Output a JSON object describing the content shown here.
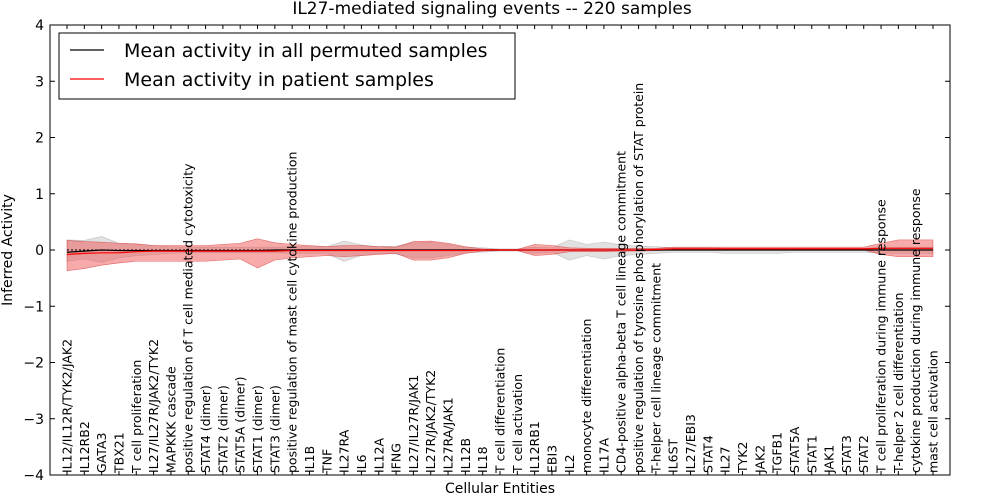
{
  "chart_data": {
    "type": "line",
    "title": "IL27-mediated signaling events -- 220 samples",
    "xlabel": "Cellular Entities",
    "ylabel": "Inferred Activity",
    "ylim": [
      -4,
      4
    ],
    "yticks": [
      "4",
      "3",
      "2",
      "1",
      "0",
      "−1",
      "−2",
      "−3",
      "−4"
    ],
    "yticks_values": [
      4,
      3,
      2,
      1,
      0,
      -1,
      -2,
      -3,
      -4
    ],
    "grid": false,
    "legend_position": "top-left",
    "categories": [
      "IL12/IL12R/TYK2/JAK2",
      "IL12RB2",
      "GATA3",
      "TBX21",
      "T cell proliferation",
      "IL27/IL27R/JAK2/TYK2",
      "MAPKKK cascade",
      "positive regulation of T cell mediated cytotoxicity",
      "STAT4 (dimer)",
      "STAT2 (dimer)",
      "STAT5A (dimer)",
      "STAT1 (dimer)",
      "STAT3 (dimer)",
      "positive regulation of mast cell cytokine production",
      "IL1B",
      "TNF",
      "IL27RA",
      "IL6",
      "IL12A",
      "IFNG",
      "IL27/IL27R/JAK1",
      "IL27R/JAK2/TYK2",
      "IL27RA/JAK1",
      "IL12B",
      "IL18",
      "T cell differentiation",
      "T cell activation",
      "IL12RB1",
      "EBI3",
      "IL2",
      "monocyte differentiation",
      "IL17A",
      "CD4-positive alpha-beta T cell lineage commitment",
      "positive regulation of tyrosine phosphorylation of STAT protein",
      "T-helper cell lineage commitment",
      "IL6ST",
      "IL27/EBI3",
      "STAT4",
      "IL27",
      "TYK2",
      "JAK2",
      "TGFB1",
      "STAT5A",
      "STAT1",
      "JAK1",
      "STAT3",
      "STAT2",
      "T cell proliferation during immune response",
      "T-helper 2 cell differentiation",
      "cytokine production during immune response",
      "mast cell activation"
    ],
    "series": [
      {
        "name": "Mean activity in all permuted samples",
        "color": "#000000",
        "values": [
          -0.04,
          -0.02,
          0.0,
          -0.01,
          -0.01,
          -0.01,
          -0.01,
          -0.01,
          -0.01,
          -0.01,
          -0.01,
          -0.01,
          0.0,
          0.0,
          0.0,
          0.0,
          0.0,
          0.0,
          0.0,
          0.0,
          0.0,
          0.0,
          0.0,
          0.0,
          0.0,
          0.0,
          0.0,
          0.0,
          0.0,
          0.0,
          0.0,
          0.0,
          0.0,
          0.0,
          0.0,
          0.0,
          0.0,
          0.0,
          0.0,
          0.0,
          0.0,
          0.0,
          0.0,
          0.0,
          0.0,
          0.0,
          0.0,
          0.0,
          0.0,
          0.0,
          0.0
        ],
        "band_upper": [
          0.18,
          0.17,
          0.24,
          0.12,
          0.1,
          0.08,
          0.06,
          0.05,
          0.05,
          0.05,
          0.05,
          0.05,
          0.05,
          0.06,
          0.06,
          0.06,
          0.16,
          0.09,
          0.06,
          0.07,
          0.13,
          0.14,
          0.1,
          0.05,
          0.04,
          0.02,
          0.02,
          0.05,
          0.04,
          0.18,
          0.1,
          0.14,
          0.09,
          0.07,
          0.06,
          0.04,
          0.04,
          0.04,
          0.03,
          0.03,
          0.03,
          0.03,
          0.03,
          0.03,
          0.03,
          0.03,
          0.03,
          0.05,
          0.05,
          0.05,
          0.05
        ],
        "band_lower": [
          -0.2,
          -0.16,
          -0.22,
          -0.14,
          -0.1,
          -0.08,
          -0.06,
          -0.05,
          -0.05,
          -0.05,
          -0.05,
          -0.05,
          -0.05,
          -0.06,
          -0.06,
          -0.06,
          -0.2,
          -0.1,
          -0.06,
          -0.07,
          -0.14,
          -0.14,
          -0.1,
          -0.05,
          -0.04,
          -0.02,
          -0.02,
          -0.06,
          -0.04,
          -0.18,
          -0.1,
          -0.16,
          -0.1,
          -0.08,
          -0.06,
          -0.04,
          -0.04,
          -0.04,
          -0.06,
          -0.06,
          -0.06,
          -0.06,
          -0.04,
          -0.04,
          -0.04,
          -0.04,
          -0.04,
          -0.06,
          -0.06,
          -0.06,
          -0.06
        ]
      },
      {
        "name": "Mean activity in patient samples",
        "color": "#ff0000",
        "values": [
          -0.08,
          -0.06,
          -0.05,
          -0.05,
          -0.03,
          -0.02,
          -0.02,
          -0.02,
          -0.02,
          -0.02,
          -0.02,
          -0.02,
          -0.02,
          -0.01,
          -0.01,
          -0.01,
          -0.01,
          -0.01,
          -0.01,
          -0.01,
          -0.01,
          -0.01,
          -0.01,
          -0.01,
          0.0,
          0.0,
          0.0,
          0.0,
          0.0,
          0.0,
          0.0,
          0.0,
          0.0,
          0.0,
          0.01,
          0.02,
          0.02,
          0.02,
          0.02,
          0.02,
          0.02,
          0.02,
          0.02,
          0.02,
          0.02,
          0.02,
          0.02,
          0.03,
          0.03,
          0.03,
          0.03
        ],
        "band_upper": [
          0.17,
          0.15,
          0.14,
          0.12,
          0.11,
          0.08,
          0.08,
          0.08,
          0.08,
          0.1,
          0.12,
          0.2,
          0.13,
          0.1,
          0.08,
          0.06,
          0.08,
          0.08,
          0.06,
          0.05,
          0.15,
          0.16,
          0.12,
          0.06,
          0.02,
          0.01,
          0.01,
          0.1,
          0.08,
          0.04,
          0.03,
          0.03,
          0.03,
          0.03,
          0.03,
          0.05,
          0.05,
          0.05,
          0.05,
          0.05,
          0.05,
          0.05,
          0.05,
          0.05,
          0.05,
          0.05,
          0.05,
          0.12,
          0.18,
          0.18,
          0.18
        ],
        "band_lower": [
          -0.37,
          -0.33,
          -0.27,
          -0.23,
          -0.2,
          -0.2,
          -0.2,
          -0.2,
          -0.2,
          -0.18,
          -0.16,
          -0.32,
          -0.18,
          -0.14,
          -0.12,
          -0.1,
          -0.12,
          -0.1,
          -0.08,
          -0.06,
          -0.18,
          -0.18,
          -0.14,
          -0.06,
          -0.02,
          -0.01,
          -0.01,
          -0.1,
          -0.08,
          -0.03,
          -0.03,
          -0.03,
          -0.02,
          -0.02,
          -0.01,
          0.0,
          0.0,
          0.0,
          0.0,
          0.0,
          0.0,
          0.0,
          0.0,
          0.0,
          0.0,
          0.0,
          0.0,
          -0.08,
          -0.12,
          -0.12,
          -0.12
        ]
      }
    ]
  }
}
